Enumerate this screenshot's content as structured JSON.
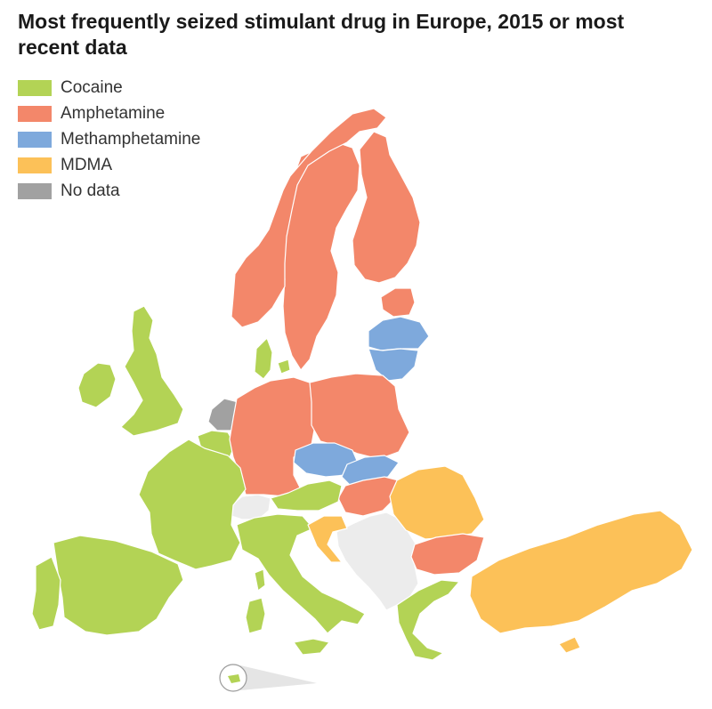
{
  "title": "Most frequently seized stimulant drug in Europe, 2015 or most recent data",
  "legend": [
    {
      "label": "Cocaine",
      "color": "#b3d355"
    },
    {
      "label": "Amphetamine",
      "color": "#f3876a"
    },
    {
      "label": "Methamphetamine",
      "color": "#7ea9dc"
    },
    {
      "label": "MDMA",
      "color": "#fcc158"
    },
    {
      "label": "No data",
      "color": "#a1a1a1"
    }
  ],
  "colors": {
    "cocaine": "#b3d355",
    "amphetamine": "#f3876a",
    "methamphetamine": "#7ea9dc",
    "mdma": "#fcc158",
    "no_data": "#a1a1a1",
    "not_reported": "#ececec"
  }
}
